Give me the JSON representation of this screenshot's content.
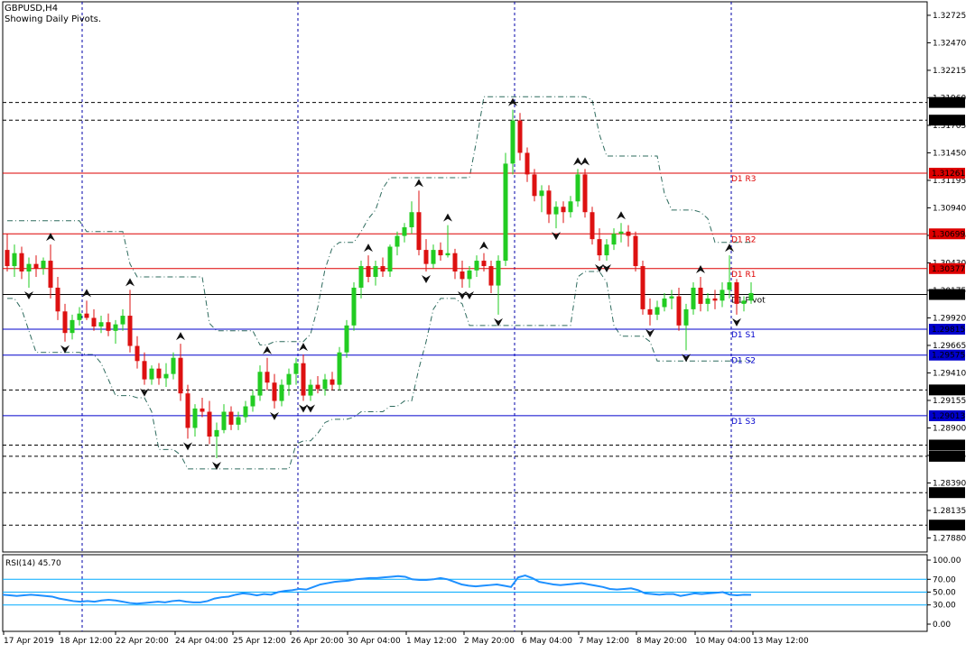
{
  "header": {
    "title": "GBPUSD,H4",
    "subtitle": "Showing Daily Pivots."
  },
  "colors": {
    "bull": "#22cc22",
    "bear": "#dd1111",
    "resistance": "#dd0000",
    "support": "#0000cc",
    "grid": "#0000aa",
    "rsi": "#1e90ff",
    "rsi_levels": "#00aaff",
    "band": "#2e6b5e",
    "dashed": "#000000"
  },
  "chart_data": [
    {
      "type": "candlestick",
      "symbol": "GBPUSD",
      "timeframe": "H4",
      "ylim": [
        1.2775,
        1.3285
      ],
      "yticks": [
        "1.32725",
        "1.32470",
        "1.32215",
        "1.31960",
        "1.31705",
        "1.31450",
        "1.31195",
        "1.30940",
        "1.30685",
        "1.30430",
        "1.30175",
        "1.29920",
        "1.29665",
        "1.29410",
        "1.29155",
        "1.28900",
        "1.28645",
        "1.28390",
        "1.28135",
        "1.27880"
      ],
      "xticks": [
        "17 Apr 2019",
        "18 Apr 12:00",
        "22 Apr 20:00",
        "24 Apr 04:00",
        "25 Apr 12:00",
        "26 Apr 20:00",
        "30 Apr 04:00",
        "1 May 12:00",
        "2 May 20:00",
        "6 May 04:00",
        "7 May 12:00",
        "8 May 20:00",
        "10 May 04:00",
        "13 May 12:00"
      ],
      "pivots": [
        {
          "name": "D1 R3",
          "value": "1.31261",
          "type": "resistance"
        },
        {
          "name": "D1 R2",
          "value": "1.30699",
          "type": "resistance"
        },
        {
          "name": "D1 R1",
          "value": "1.30377",
          "type": "resistance"
        },
        {
          "name": "D1 Pivot",
          "value": "1.30137",
          "type": "pivot"
        },
        {
          "name": "D1 S1",
          "value": "1.29815",
          "type": "support"
        },
        {
          "name": "D1 S2",
          "value": "1.29575",
          "type": "support"
        },
        {
          "name": "D1 S3",
          "value": "1.29013",
          "type": "support"
        }
      ],
      "dashed_levels": [
        "1.31917",
        "1.31753",
        "1.29252",
        "1.28741",
        "1.28637",
        "1.28300",
        "1.27999"
      ],
      "candles": [
        {
          "o": 1.3055,
          "h": 1.307,
          "l": 1.3035,
          "c": 1.304
        },
        {
          "o": 1.304,
          "h": 1.306,
          "l": 1.303,
          "c": 1.3052
        },
        {
          "o": 1.3052,
          "h": 1.3058,
          "l": 1.3028,
          "c": 1.3035
        },
        {
          "o": 1.3035,
          "h": 1.3048,
          "l": 1.302,
          "c": 1.3042
        },
        {
          "o": 1.3042,
          "h": 1.305,
          "l": 1.303,
          "c": 1.3038
        },
        {
          "o": 1.3038,
          "h": 1.3048,
          "l": 1.3032,
          "c": 1.3045
        },
        {
          "o": 1.3045,
          "h": 1.306,
          "l": 1.301,
          "c": 1.302
        },
        {
          "o": 1.302,
          "h": 1.303,
          "l": 1.299,
          "c": 1.2998
        },
        {
          "o": 1.2998,
          "h": 1.3005,
          "l": 1.297,
          "c": 1.2978
        },
        {
          "o": 1.2978,
          "h": 1.2995,
          "l": 1.2972,
          "c": 1.299
        },
        {
          "o": 1.299,
          "h": 1.3002,
          "l": 1.2985,
          "c": 1.2996
        },
        {
          "o": 1.2996,
          "h": 1.3008,
          "l": 1.299,
          "c": 1.2992
        },
        {
          "o": 1.2992,
          "h": 1.3,
          "l": 1.298,
          "c": 1.2984
        },
        {
          "o": 1.2984,
          "h": 1.2994,
          "l": 1.2978,
          "c": 1.2988
        },
        {
          "o": 1.2988,
          "h": 1.2996,
          "l": 1.2975,
          "c": 1.298
        },
        {
          "o": 1.298,
          "h": 1.299,
          "l": 1.2968,
          "c": 1.2986
        },
        {
          "o": 1.2986,
          "h": 1.3,
          "l": 1.298,
          "c": 1.2994
        },
        {
          "o": 1.2994,
          "h": 1.3018,
          "l": 1.296,
          "c": 1.2966
        },
        {
          "o": 1.2966,
          "h": 1.2975,
          "l": 1.2945,
          "c": 1.2952
        },
        {
          "o": 1.2952,
          "h": 1.296,
          "l": 1.293,
          "c": 1.2935
        },
        {
          "o": 1.2935,
          "h": 1.2948,
          "l": 1.293,
          "c": 1.2945
        },
        {
          "o": 1.2945,
          "h": 1.295,
          "l": 1.293,
          "c": 1.2936
        },
        {
          "o": 1.2936,
          "h": 1.295,
          "l": 1.2928,
          "c": 1.294
        },
        {
          "o": 1.294,
          "h": 1.296,
          "l": 1.2935,
          "c": 1.2955
        },
        {
          "o": 1.2955,
          "h": 1.2968,
          "l": 1.2915,
          "c": 1.2922
        },
        {
          "o": 1.2922,
          "h": 1.293,
          "l": 1.288,
          "c": 1.289
        },
        {
          "o": 1.289,
          "h": 1.2912,
          "l": 1.2882,
          "c": 1.2908
        },
        {
          "o": 1.2908,
          "h": 1.2918,
          "l": 1.29,
          "c": 1.2905
        },
        {
          "o": 1.2905,
          "h": 1.2915,
          "l": 1.2875,
          "c": 1.2882
        },
        {
          "o": 1.2882,
          "h": 1.2895,
          "l": 1.2862,
          "c": 1.2888
        },
        {
          "o": 1.2888,
          "h": 1.2912,
          "l": 1.2885,
          "c": 1.2905
        },
        {
          "o": 1.2905,
          "h": 1.291,
          "l": 1.2888,
          "c": 1.2893
        },
        {
          "o": 1.2893,
          "h": 1.2905,
          "l": 1.2888,
          "c": 1.29
        },
        {
          "o": 1.29,
          "h": 1.2915,
          "l": 1.2895,
          "c": 1.291
        },
        {
          "o": 1.291,
          "h": 1.2925,
          "l": 1.2905,
          "c": 1.292
        },
        {
          "o": 1.292,
          "h": 1.2948,
          "l": 1.2915,
          "c": 1.2942
        },
        {
          "o": 1.2942,
          "h": 1.2955,
          "l": 1.2925,
          "c": 1.2932
        },
        {
          "o": 1.2932,
          "h": 1.294,
          "l": 1.2908,
          "c": 1.2915
        },
        {
          "o": 1.2915,
          "h": 1.2935,
          "l": 1.291,
          "c": 1.293
        },
        {
          "o": 1.293,
          "h": 1.2945,
          "l": 1.292,
          "c": 1.294
        },
        {
          "o": 1.294,
          "h": 1.2955,
          "l": 1.293,
          "c": 1.295
        },
        {
          "o": 1.295,
          "h": 1.2958,
          "l": 1.2915,
          "c": 1.292
        },
        {
          "o": 1.292,
          "h": 1.2935,
          "l": 1.2915,
          "c": 1.293
        },
        {
          "o": 1.293,
          "h": 1.2938,
          "l": 1.2922,
          "c": 1.2926
        },
        {
          "o": 1.2926,
          "h": 1.294,
          "l": 1.292,
          "c": 1.2935
        },
        {
          "o": 1.2935,
          "h": 1.2942,
          "l": 1.2925,
          "c": 1.293
        },
        {
          "o": 1.293,
          "h": 1.2965,
          "l": 1.2925,
          "c": 1.296
        },
        {
          "o": 1.296,
          "h": 1.299,
          "l": 1.2955,
          "c": 1.2985
        },
        {
          "o": 1.2985,
          "h": 1.3025,
          "l": 1.298,
          "c": 1.302
        },
        {
          "o": 1.302,
          "h": 1.3045,
          "l": 1.301,
          "c": 1.304
        },
        {
          "o": 1.304,
          "h": 1.305,
          "l": 1.3025,
          "c": 1.303
        },
        {
          "o": 1.303,
          "h": 1.3045,
          "l": 1.3022,
          "c": 1.304
        },
        {
          "o": 1.304,
          "h": 1.3048,
          "l": 1.303,
          "c": 1.3035
        },
        {
          "o": 1.3035,
          "h": 1.306,
          "l": 1.303,
          "c": 1.3058
        },
        {
          "o": 1.3058,
          "h": 1.3072,
          "l": 1.305,
          "c": 1.3068
        },
        {
          "o": 1.3068,
          "h": 1.308,
          "l": 1.3062,
          "c": 1.3076
        },
        {
          "o": 1.3076,
          "h": 1.31,
          "l": 1.307,
          "c": 1.309
        },
        {
          "o": 1.309,
          "h": 1.311,
          "l": 1.305,
          "c": 1.3055
        },
        {
          "o": 1.3055,
          "h": 1.3065,
          "l": 1.3035,
          "c": 1.3042
        },
        {
          "o": 1.3042,
          "h": 1.306,
          "l": 1.3038,
          "c": 1.3055
        },
        {
          "o": 1.3055,
          "h": 1.3062,
          "l": 1.3045,
          "c": 1.305
        },
        {
          "o": 1.305,
          "h": 1.3078,
          "l": 1.3048,
          "c": 1.3052
        },
        {
          "o": 1.3052,
          "h": 1.3056,
          "l": 1.3028,
          "c": 1.3035
        },
        {
          "o": 1.3035,
          "h": 1.3045,
          "l": 1.302,
          "c": 1.3028
        },
        {
          "o": 1.3028,
          "h": 1.304,
          "l": 1.302,
          "c": 1.3036
        },
        {
          "o": 1.3036,
          "h": 1.305,
          "l": 1.303,
          "c": 1.3045
        },
        {
          "o": 1.3045,
          "h": 1.3052,
          "l": 1.3035,
          "c": 1.304
        },
        {
          "o": 1.304,
          "h": 1.3045,
          "l": 1.3015,
          "c": 1.3022
        },
        {
          "o": 1.3022,
          "h": 1.305,
          "l": 1.2995,
          "c": 1.3045
        },
        {
          "o": 1.3045,
          "h": 1.3145,
          "l": 1.304,
          "c": 1.3135
        },
        {
          "o": 1.3135,
          "h": 1.3185,
          "l": 1.3125,
          "c": 1.3175
        },
        {
          "o": 1.3175,
          "h": 1.3182,
          "l": 1.3138,
          "c": 1.3145
        },
        {
          "o": 1.3145,
          "h": 1.315,
          "l": 1.3118,
          "c": 1.3125
        },
        {
          "o": 1.3125,
          "h": 1.313,
          "l": 1.31,
          "c": 1.3105
        },
        {
          "o": 1.3105,
          "h": 1.3115,
          "l": 1.309,
          "c": 1.311
        },
        {
          "o": 1.311,
          "h": 1.3115,
          "l": 1.308,
          "c": 1.3088
        },
        {
          "o": 1.3088,
          "h": 1.31,
          "l": 1.3075,
          "c": 1.3095
        },
        {
          "o": 1.3095,
          "h": 1.31,
          "l": 1.308,
          "c": 1.309
        },
        {
          "o": 1.309,
          "h": 1.3105,
          "l": 1.3085,
          "c": 1.31
        },
        {
          "o": 1.31,
          "h": 1.313,
          "l": 1.3095,
          "c": 1.3125
        },
        {
          "o": 1.3125,
          "h": 1.313,
          "l": 1.3085,
          "c": 1.309
        },
        {
          "o": 1.309,
          "h": 1.3095,
          "l": 1.306,
          "c": 1.3065
        },
        {
          "o": 1.3065,
          "h": 1.3075,
          "l": 1.3045,
          "c": 1.305
        },
        {
          "o": 1.305,
          "h": 1.3065,
          "l": 1.3045,
          "c": 1.306
        },
        {
          "o": 1.306,
          "h": 1.3075,
          "l": 1.3055,
          "c": 1.307
        },
        {
          "o": 1.307,
          "h": 1.308,
          "l": 1.3062,
          "c": 1.3072
        },
        {
          "o": 1.3072,
          "h": 1.3078,
          "l": 1.3058,
          "c": 1.3068
        },
        {
          "o": 1.3068,
          "h": 1.3072,
          "l": 1.3035,
          "c": 1.304
        },
        {
          "o": 1.304,
          "h": 1.3045,
          "l": 1.2995,
          "c": 1.3
        },
        {
          "o": 1.3,
          "h": 1.301,
          "l": 1.2985,
          "c": 1.2995
        },
        {
          "o": 1.2995,
          "h": 1.3008,
          "l": 1.299,
          "c": 1.3002
        },
        {
          "o": 1.3002,
          "h": 1.3015,
          "l": 1.2998,
          "c": 1.301
        },
        {
          "o": 1.301,
          "h": 1.3018,
          "l": 1.3,
          "c": 1.3012
        },
        {
          "o": 1.3012,
          "h": 1.302,
          "l": 1.298,
          "c": 1.2985
        },
        {
          "o": 1.2985,
          "h": 1.3005,
          "l": 1.2962,
          "c": 1.3
        },
        {
          "o": 1.3,
          "h": 1.3025,
          "l": 1.2995,
          "c": 1.302
        },
        {
          "o": 1.302,
          "h": 1.303,
          "l": 1.2998,
          "c": 1.3005
        },
        {
          "o": 1.3005,
          "h": 1.3015,
          "l": 1.2998,
          "c": 1.301
        },
        {
          "o": 1.301,
          "h": 1.3018,
          "l": 1.3,
          "c": 1.3008
        },
        {
          "o": 1.3008,
          "h": 1.3025,
          "l": 1.3002,
          "c": 1.3018
        },
        {
          "o": 1.3018,
          "h": 1.305,
          "l": 1.301,
          "c": 1.3025
        },
        {
          "o": 1.3025,
          "h": 1.3028,
          "l": 1.2995,
          "c": 1.3005
        },
        {
          "o": 1.3005,
          "h": 1.3012,
          "l": 1.2998,
          "c": 1.3008
        },
        {
          "o": 1.3008,
          "h": 1.3025,
          "l": 1.3005,
          "c": 1.3015
        }
      ]
    },
    {
      "type": "line",
      "indicator": "RSI(14)",
      "label": "RSI(14) 45.70",
      "ylim": [
        0,
        100
      ],
      "yticks": [
        "100.00",
        "70.00",
        "50.00",
        "30.00",
        "0.00"
      ],
      "levels": [
        70,
        50,
        30
      ],
      "values": [
        46,
        45,
        44,
        45,
        46,
        45,
        44,
        43,
        40,
        38,
        36,
        35,
        36,
        35,
        37,
        38,
        37,
        35,
        33,
        32,
        33,
        34,
        35,
        34,
        36,
        37,
        35,
        34,
        34,
        36,
        40,
        42,
        43,
        46,
        48,
        47,
        45,
        47,
        46,
        50,
        52,
        53,
        55,
        54,
        58,
        62,
        64,
        66,
        67,
        68,
        70,
        71,
        72,
        72,
        73,
        74,
        75,
        74,
        70,
        69,
        69,
        70,
        72,
        70,
        66,
        62,
        60,
        59,
        60,
        61,
        62,
        60,
        58,
        73,
        76,
        72,
        66,
        64,
        62,
        61,
        62,
        63,
        64,
        62,
        60,
        58,
        55,
        54,
        55,
        56,
        53,
        48,
        47,
        46,
        47,
        47,
        44,
        46,
        48,
        47,
        48,
        49,
        50,
        46,
        45,
        46,
        45.7
      ]
    }
  ]
}
